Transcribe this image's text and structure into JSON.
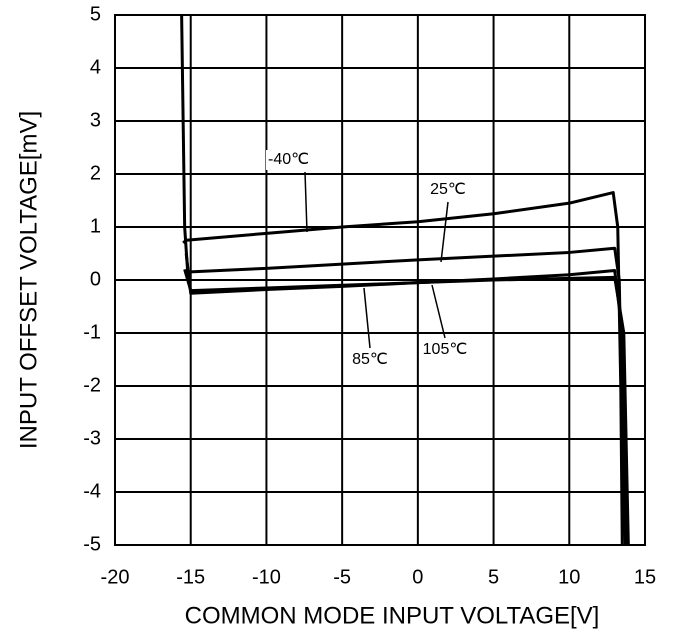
{
  "chart_data": {
    "type": "line",
    "xlabel": "COMMON MODE INPUT VOLTAGE[V]",
    "ylabel": "INPUT OFFSET VOLTAGE[mV]",
    "xlim": [
      -20,
      15
    ],
    "xticks": [
      -20,
      -15,
      -10,
      -5,
      0,
      5,
      10,
      15
    ],
    "ylim": [
      -5,
      5
    ],
    "yticks": [
      -5,
      -4,
      -3,
      -2,
      -1,
      0,
      1,
      2,
      3,
      4,
      5
    ],
    "grid": true,
    "series": [
      {
        "name": "-40℃",
        "color": "#000000",
        "x": [
          -15.5,
          -15.3,
          -10,
          -5,
          0,
          5,
          10,
          12.9,
          13.2,
          13.4,
          13.5
        ],
        "values": [
          0.7,
          0.75,
          0.88,
          1.0,
          1.1,
          1.25,
          1.45,
          1.65,
          1.0,
          -2,
          -5
        ]
      },
      {
        "name": "25℃",
        "color": "#000000",
        "x": [
          -15.6,
          -15.4,
          -15.2,
          -10,
          -5,
          0,
          5,
          10,
          13,
          13.3,
          13.5,
          13.7
        ],
        "values": [
          5,
          1,
          0.15,
          0.22,
          0.3,
          0.38,
          0.45,
          0.52,
          0.6,
          0,
          -3,
          -5
        ]
      },
      {
        "name": "85℃",
        "color": "#000000",
        "x": [
          -15.3,
          -15,
          -10,
          -5,
          0,
          5,
          10,
          13,
          13.5,
          13.8
        ],
        "values": [
          0.5,
          -0.25,
          -0.18,
          -0.12,
          -0.05,
          0.02,
          0.1,
          0.18,
          -1,
          -5
        ]
      },
      {
        "name": "105℃",
        "color": "#000000",
        "x": [
          -15.4,
          -15,
          -10,
          -5,
          0,
          5,
          10,
          13,
          13.6,
          13.9
        ],
        "values": [
          0.2,
          -0.2,
          -0.15,
          -0.1,
          -0.05,
          0,
          0.03,
          0.05,
          -1,
          -5
        ]
      }
    ]
  }
}
